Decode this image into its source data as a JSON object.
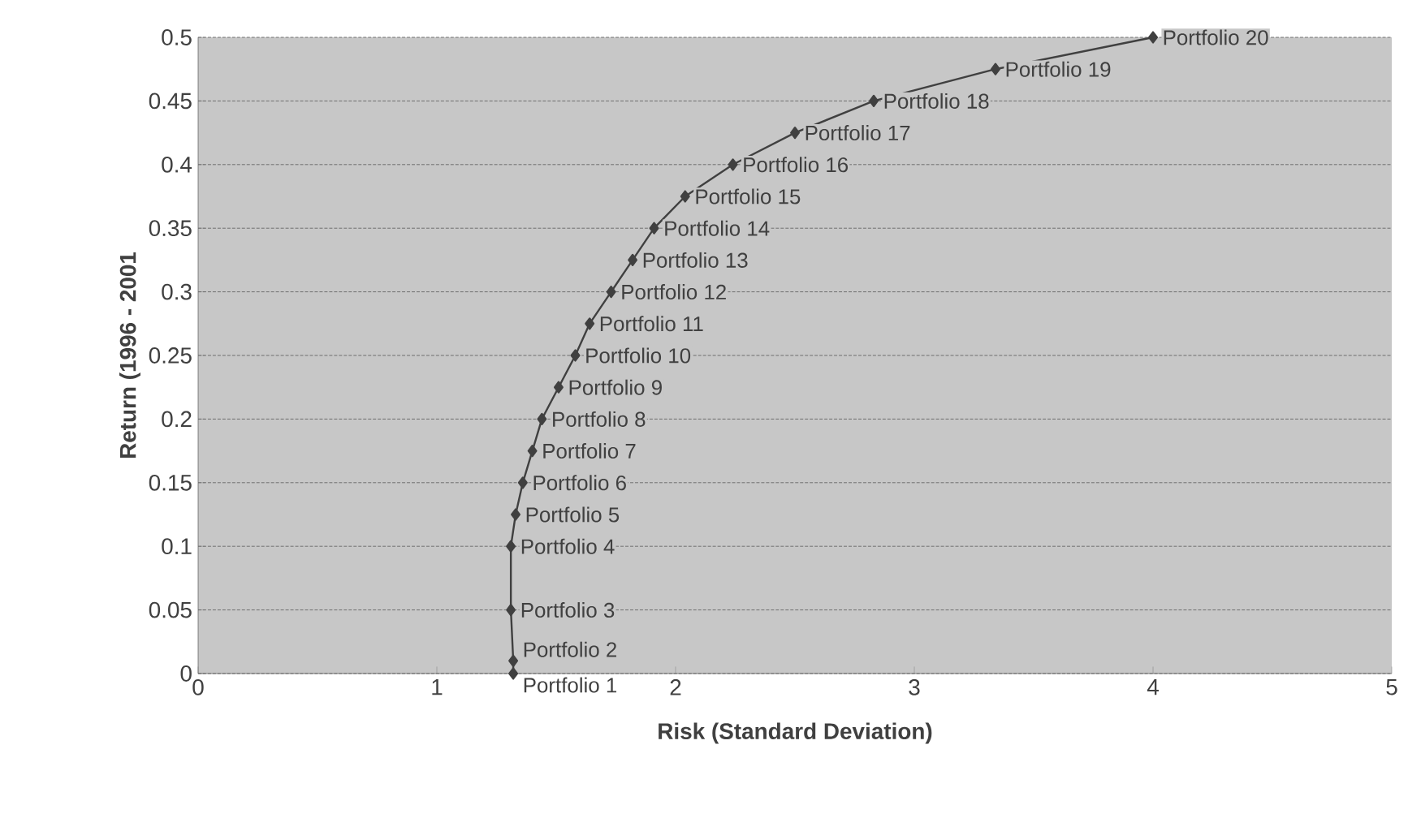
{
  "chart_data": {
    "type": "line",
    "xlabel": "Risk (Standard Deviation)",
    "ylabel": "Return (1996 - 2001",
    "x": [
      1.32,
      1.32,
      1.31,
      1.31,
      1.33,
      1.36,
      1.4,
      1.44,
      1.51,
      1.58,
      1.64,
      1.73,
      1.82,
      1.91,
      2.04,
      2.24,
      2.5,
      2.83,
      3.34,
      4.0
    ],
    "series": [
      {
        "color": "#404040",
        "values": [
          0,
          0.01,
          0.05,
          0.1,
          0.125,
          0.15,
          0.175,
          0.2,
          0.225,
          0.25,
          0.275,
          0.3,
          0.325,
          0.35,
          0.375,
          0.4,
          0.425,
          0.45,
          0.475,
          0.5
        ]
      }
    ],
    "annotations": [
      {
        "text": "Portfolio 1",
        "x": 1.32,
        "y": 0
      },
      {
        "text": "Portfolio 2",
        "x": 1.32,
        "y": 0.01
      },
      {
        "text": "Portfolio 3",
        "x": 1.31,
        "y": 0.05
      },
      {
        "text": "Portfolio 4",
        "x": 1.31,
        "y": 0.1
      },
      {
        "text": "Portfolio 5",
        "x": 1.33,
        "y": 0.125
      },
      {
        "text": "Portfolio 6",
        "x": 1.36,
        "y": 0.15
      },
      {
        "text": "Portfolio 7",
        "x": 1.4,
        "y": 0.175
      },
      {
        "text": "Portfolio 8",
        "x": 1.44,
        "y": 0.2
      },
      {
        "text": "Portfolio 9",
        "x": 1.51,
        "y": 0.225
      },
      {
        "text": "Portfolio 10",
        "x": 1.58,
        "y": 0.25
      },
      {
        "text": "Portfolio 11",
        "x": 1.64,
        "y": 0.275
      },
      {
        "text": "Portfolio 12",
        "x": 1.73,
        "y": 0.3
      },
      {
        "text": "Portfolio 13",
        "x": 1.82,
        "y": 0.325
      },
      {
        "text": "Portfolio 14",
        "x": 1.91,
        "y": 0.35
      },
      {
        "text": "Portfolio 15",
        "x": 2.04,
        "y": 0.375
      },
      {
        "text": "Portfolio 16",
        "x": 2.24,
        "y": 0.4
      },
      {
        "text": "Portfolio 17",
        "x": 2.5,
        "y": 0.425
      },
      {
        "text": "Portfolio 18",
        "x": 2.83,
        "y": 0.45
      },
      {
        "text": "Portfolio 19",
        "x": 3.34,
        "y": 0.475
      },
      {
        "text": "Portfolio 20",
        "x": 4.0,
        "y": 0.5
      }
    ],
    "xlim": [
      0,
      5
    ],
    "ylim": [
      0,
      0.5
    ],
    "xticks": [
      0,
      1,
      2,
      3,
      4,
      5
    ],
    "yticks": [
      0,
      0.05,
      0.1,
      0.15,
      0.2,
      0.25,
      0.3,
      0.35,
      0.4,
      0.45,
      0.5
    ],
    "grid": "y",
    "marker": "diamond",
    "line_style": "solid"
  }
}
